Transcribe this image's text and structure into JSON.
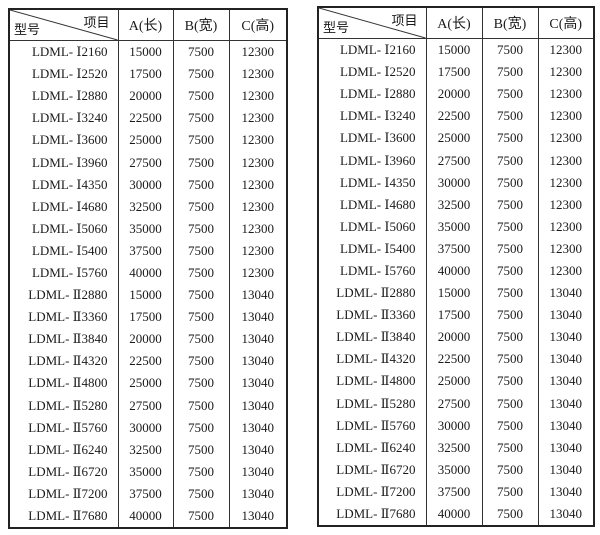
{
  "header": {
    "item": "项目",
    "model": "型号",
    "a": "A(长)",
    "b": "B(宽)",
    "c": "C(高)"
  },
  "rows": [
    [
      "LDML- Ⅰ2160",
      "15000",
      "7500",
      "12300"
    ],
    [
      "LDML- Ⅰ2520",
      "17500",
      "7500",
      "12300"
    ],
    [
      "LDML- Ⅰ2880",
      "20000",
      "7500",
      "12300"
    ],
    [
      "LDML- Ⅰ3240",
      "22500",
      "7500",
      "12300"
    ],
    [
      "LDML- Ⅰ3600",
      "25000",
      "7500",
      "12300"
    ],
    [
      "LDML- Ⅰ3960",
      "27500",
      "7500",
      "12300"
    ],
    [
      "LDML- Ⅰ4350",
      "30000",
      "7500",
      "12300"
    ],
    [
      "LDML- Ⅰ4680",
      "32500",
      "7500",
      "12300"
    ],
    [
      "LDML- Ⅰ5060",
      "35000",
      "7500",
      "12300"
    ],
    [
      "LDML- Ⅰ5400",
      "37500",
      "7500",
      "12300"
    ],
    [
      "LDML- Ⅰ5760",
      "40000",
      "7500",
      "12300"
    ],
    [
      "LDML- Ⅱ2880",
      "15000",
      "7500",
      "13040"
    ],
    [
      "LDML- Ⅱ3360",
      "17500",
      "7500",
      "13040"
    ],
    [
      "LDML- Ⅱ3840",
      "20000",
      "7500",
      "13040"
    ],
    [
      "LDML- Ⅱ4320",
      "22500",
      "7500",
      "13040"
    ],
    [
      "LDML- Ⅱ4800",
      "25000",
      "7500",
      "13040"
    ],
    [
      "LDML- Ⅱ5280",
      "27500",
      "7500",
      "13040"
    ],
    [
      "LDML- Ⅱ5760",
      "30000",
      "7500",
      "13040"
    ],
    [
      "LDML- Ⅱ6240",
      "32500",
      "7500",
      "13040"
    ],
    [
      "LDML- Ⅱ6720",
      "35000",
      "7500",
      "13040"
    ],
    [
      "LDML- Ⅱ7200",
      "37500",
      "7500",
      "13040"
    ],
    [
      "LDML- Ⅱ7680",
      "40000",
      "7500",
      "13040"
    ]
  ]
}
